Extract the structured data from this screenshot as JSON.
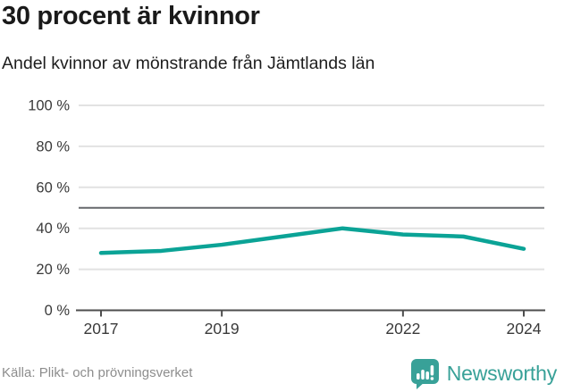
{
  "header": {
    "title": "30 procent är kvinnor",
    "subtitle": "Andel kvinnor av mönstrande från Jämtlands län"
  },
  "chart_data": {
    "type": "line",
    "title": "30 procent är kvinnor",
    "subtitle": "Andel kvinnor av mönstrande från Jämtlands län",
    "x": [
      2017,
      2018,
      2019,
      2020,
      2021,
      2022,
      2023,
      2024
    ],
    "series": [
      {
        "name": "Andel kvinnor av mönstrande",
        "values": [
          28,
          29,
          32,
          36,
          40,
          37,
          36,
          30
        ]
      }
    ],
    "ylim": [
      0,
      100
    ],
    "y_ticks": [
      0,
      20,
      40,
      60,
      80,
      100
    ],
    "y_tick_suffix": " %",
    "x_tick_years": [
      2017,
      2019,
      2022,
      2024
    ],
    "reference_line": 50,
    "grid": true,
    "legend_position": "none",
    "line_color": "#0ba396",
    "grid_color": "#e2e2e2",
    "reference_color": "#66686c",
    "axis_color": "#4d4d4d",
    "tick_label_color": "#3a3a3a"
  },
  "footer": {
    "source": "Källa: Plikt- och prövningsverket",
    "brand": "Newsworthy",
    "brand_color": "#38a198"
  }
}
